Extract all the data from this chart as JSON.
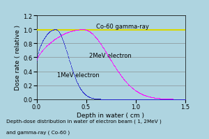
{
  "title_line1": "Depth-dose distribution in water of electron beam ( 1, 2MeV )",
  "title_line2": "and gamma-ray ( Co-60 )",
  "xlabel_text": "Depth in water ( cm )",
  "ylabel_text": "Dose rate ( relative )",
  "xlim": [
    0.0,
    1.5
  ],
  "ylim": [
    0.0,
    1.2
  ],
  "xticks": [
    0.0,
    0.5,
    1.0,
    1.5
  ],
  "yticks": [
    0.0,
    0.2,
    0.4,
    0.6,
    0.8,
    1.0,
    1.2
  ],
  "bg_color": "#aed4e0",
  "plot_bg_color": "#aed4e0",
  "co60_color": "#d8d800",
  "mev2_color": "#ff00ff",
  "mev1_color": "#2222cc",
  "annotation_co60": "Co-60 gamma-ray",
  "annotation_2mev": "2MeV electron",
  "annotation_1mev": "1MeV electron",
  "co60_value": 0.99
}
